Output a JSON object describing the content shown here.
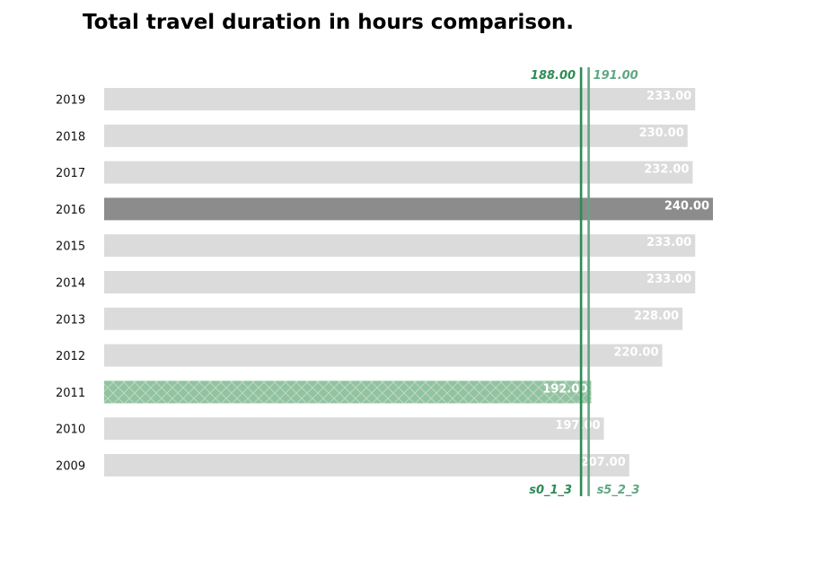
{
  "chart_data": {
    "type": "bar",
    "orientation": "horizontal",
    "title": "Total travel duration in hours comparison.",
    "categories": [
      "2019",
      "2018",
      "2017",
      "2016",
      "2015",
      "2014",
      "2013",
      "2012",
      "2011",
      "2010",
      "2009"
    ],
    "values": [
      233,
      230,
      232,
      240,
      233,
      233,
      228,
      220,
      192,
      197,
      207
    ],
    "value_labels": [
      "233.00",
      "230.00",
      "232.00",
      "240.00",
      "233.00",
      "233.00",
      "228.00",
      "220.00",
      "192.00",
      "197.00",
      "207.00"
    ],
    "xlim": [
      0,
      240
    ],
    "grid": false,
    "highlight": {
      "max_category": "2016",
      "selected_category": "2011"
    },
    "reference_lines": [
      {
        "name": "s0_1_3",
        "value": 188,
        "value_label": "188.00",
        "color": "#2e8b57"
      },
      {
        "name": "s5_2_3",
        "value": 191,
        "value_label": "191.00",
        "color": "#5fa882"
      }
    ],
    "colors": {
      "default_bar": "#dbdbdb",
      "max_bar": "#8c8c8c",
      "selected_bar": "#8fc3a4",
      "selected_hatch": "#c9d9b9"
    }
  }
}
